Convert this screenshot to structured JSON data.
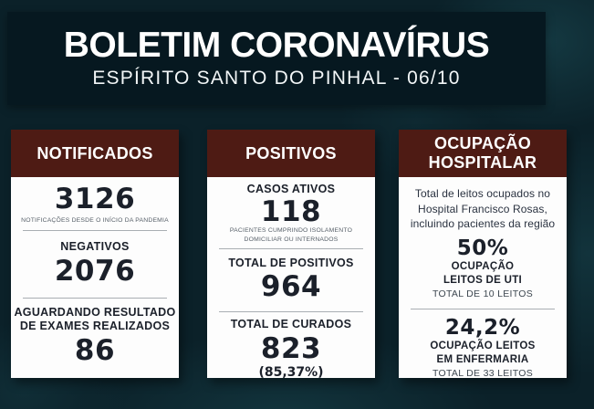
{
  "header": {
    "title": "BOLETIM CORONAVÍRUS",
    "subtitle": "ESPÍRITO SANTO DO PINHAL - 06/10"
  },
  "cards": [
    {
      "title": "NOTIFICADOS",
      "stats": [
        {
          "value": "3126",
          "caption": "NOTIFICAÇÕES DESDE O INÍCIO DA PANDEMIA"
        },
        {
          "label": "NEGATIVOS",
          "value": "2076"
        },
        {
          "label": "AGUARDANDO RESULTADO\nDE EXAMES REALIZADOS",
          "value": "86"
        }
      ]
    },
    {
      "title": "POSITIVOS",
      "stats": [
        {
          "label": "CASOS ATIVOS",
          "value": "118",
          "caption": "PACIENTES CUMPRINDO ISOLAMENTO\nDOMICILIAR OU INTERNADOS"
        },
        {
          "label": "TOTAL DE POSITIVOS",
          "value": "964"
        },
        {
          "label": "TOTAL DE CURADOS",
          "value": "823",
          "subvalue": "(85,37%)"
        }
      ]
    },
    {
      "title": "OCUPAÇÃO\nHOSPITALAR",
      "intro": "Total de leitos ocupados no\nHospital Francisco Rosas,\nincluindo pacientes da região",
      "stats": [
        {
          "value": "50%",
          "label": "OCUPAÇÃO\nLEITOS DE UTI",
          "caption": "TOTAL DE 10 LEITOS"
        },
        {
          "value": "24,2%",
          "label": "OCUPAÇÃO LEITOS\nEM ENFERMARIA",
          "caption": "TOTAL DE 33 LEITOS"
        }
      ]
    }
  ],
  "colors": {
    "background": "#0b2129",
    "header_band": "#061820",
    "card_header_accent": "#4e1b14",
    "card_body": "#fdfdfd",
    "text_dark": "#1b202a"
  }
}
